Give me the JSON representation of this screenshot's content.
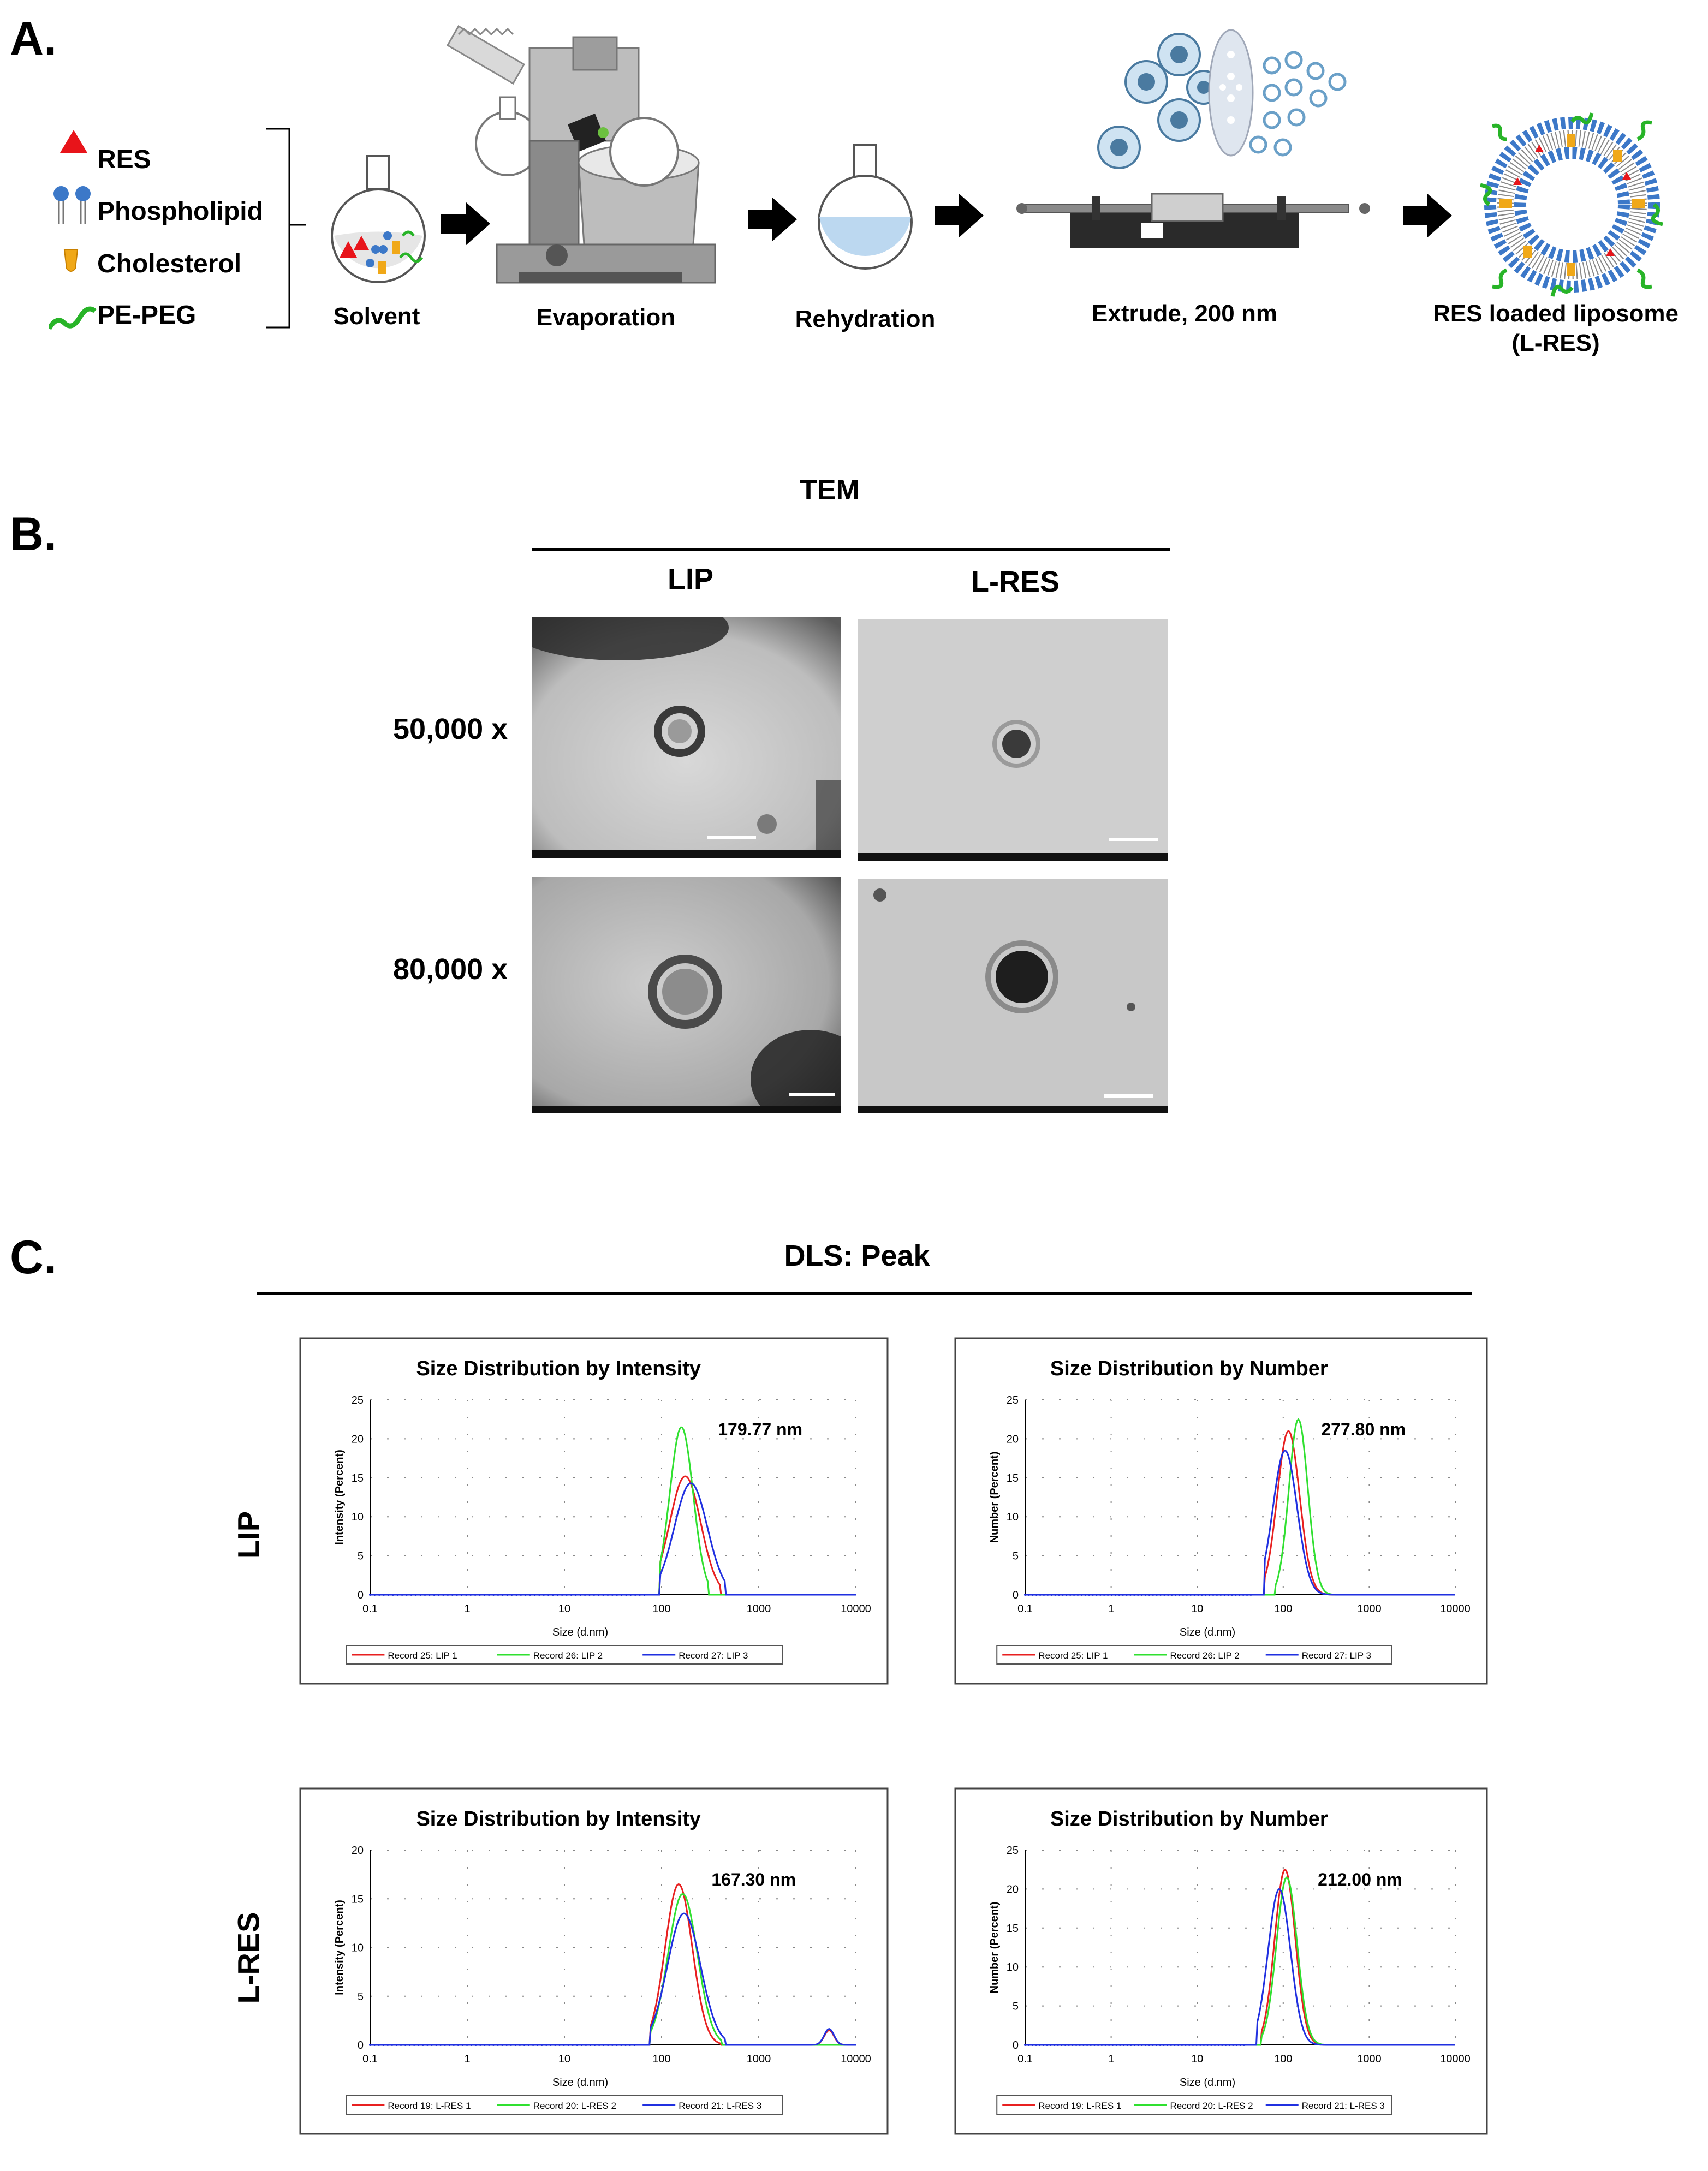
{
  "panel_a": {
    "letter": "A.",
    "legend": [
      {
        "label": "RES",
        "icon": "red-triangle-icon",
        "color": "#e8141a"
      },
      {
        "label": "Phospholipid",
        "icon": "phospholipid-icon",
        "color": "#3c78c8"
      },
      {
        "label": "Cholesterol",
        "icon": "cholesterol-icon",
        "color": "#f0a818"
      },
      {
        "label": "PE-PEG",
        "icon": "pe-peg-icon",
        "color": "#28b428"
      }
    ],
    "steps": [
      "Solvent",
      "Evaporation",
      "Rehydration",
      "Extrude, 200 nm"
    ],
    "final_label_line1": "RES loaded liposome",
    "final_label_line2": "(L-RES)"
  },
  "panel_b": {
    "letter": "B.",
    "title": "TEM",
    "columns": [
      "LIP",
      "L-RES"
    ],
    "rows": [
      "50,000 x",
      "80,000 x"
    ]
  },
  "panel_c": {
    "letter": "C.",
    "title": "DLS: Peak",
    "row_labels": [
      "LIP",
      "L-RES"
    ]
  },
  "chart_data": [
    {
      "type": "line",
      "title": "Size Distribution by Intensity",
      "xlabel": "Size (d.nm)",
      "ylabel": "Intensity (Percent)",
      "xscale": "log",
      "xlim": [
        0.1,
        10000
      ],
      "ylim": [
        0,
        25
      ],
      "x_ticks": [
        "0.1",
        "1",
        "10",
        "100",
        "1000",
        "10000"
      ],
      "y_ticks": [
        "0",
        "5",
        "10",
        "15",
        "20",
        "25"
      ],
      "annotation": "179.77 nm",
      "series": [
        {
          "name": "Record 25: LIP 1",
          "color": "#e82020",
          "peak_x": 175,
          "peak_y": 15.2,
          "width": 0.16,
          "min_x": 95,
          "max_x": 400
        },
        {
          "name": "Record 26: LIP 2",
          "color": "#30e030",
          "peak_x": 160,
          "peak_y": 21.5,
          "width": 0.12,
          "min_x": 95,
          "max_x": 300
        },
        {
          "name": "Record 27: LIP 3",
          "color": "#2030e0",
          "peak_x": 200,
          "peak_y": 14.3,
          "width": 0.17,
          "min_x": 95,
          "max_x": 450
        }
      ]
    },
    {
      "type": "line",
      "title": "Size Distribution by Number",
      "xlabel": "Size (d.nm)",
      "ylabel": "Number (Percent)",
      "xscale": "log",
      "xlim": [
        0.1,
        10000
      ],
      "ylim": [
        0,
        25
      ],
      "x_ticks": [
        "0.1",
        "1",
        "10",
        "100",
        "1000",
        "10000"
      ],
      "y_ticks": [
        "0",
        "5",
        "10",
        "15",
        "20",
        "25"
      ],
      "annotation": "277.80  nm",
      "series": [
        {
          "name": "Record 25: LIP 1",
          "color": "#e82020",
          "peak_x": 115,
          "peak_y": 21.0,
          "width": 0.13,
          "min_x": 60,
          "max_x": 500
        },
        {
          "name": "Record 26: LIP 2",
          "color": "#30e030",
          "peak_x": 150,
          "peak_y": 22.5,
          "width": 0.11,
          "min_x": 80,
          "max_x": 450
        },
        {
          "name": "Record 27: LIP 3",
          "color": "#2030e0",
          "peak_x": 105,
          "peak_y": 18.5,
          "width": 0.14,
          "min_x": 60,
          "max_x": 500
        }
      ]
    },
    {
      "type": "line",
      "title": "Size Distribution by Intensity",
      "xlabel": "Size (d.nm)",
      "ylabel": "Intensity (Percent)",
      "xscale": "log",
      "xlim": [
        0.1,
        10000
      ],
      "ylim": [
        0,
        20
      ],
      "x_ticks": [
        "0.1",
        "1",
        "10",
        "100",
        "1000",
        "10000"
      ],
      "y_ticks": [
        "0",
        "5",
        "10",
        "15",
        "20"
      ],
      "annotation": "167.30 nm",
      "series": [
        {
          "name": "Record 19: L-RES 1",
          "color": "#e82020",
          "peak_x": 150,
          "peak_y": 16.5,
          "width": 0.14,
          "min_x": 75,
          "max_x": 400
        },
        {
          "name": "Record 20: L-RES 2",
          "color": "#30e030",
          "peak_x": 165,
          "peak_y": 15.5,
          "width": 0.15,
          "min_x": 75,
          "max_x": 420
        },
        {
          "name": "Record 21: L-RES 3",
          "color": "#2030e0",
          "peak_x": 170,
          "peak_y": 13.5,
          "width": 0.17,
          "min_x": 75,
          "max_x": 450
        }
      ],
      "secondary_peak": {
        "x": 5300,
        "y": 1.5
      }
    },
    {
      "type": "line",
      "title": "Size Distribution by Number",
      "xlabel": "Size (d.nm)",
      "ylabel": "Number (Percent)",
      "xscale": "log",
      "xlim": [
        0.1,
        10000
      ],
      "ylim": [
        0,
        25
      ],
      "x_ticks": [
        "0.1",
        "1",
        "10",
        "100",
        "1000",
        "10000"
      ],
      "y_ticks": [
        "0",
        "5",
        "10",
        "15",
        "20",
        "25"
      ],
      "annotation": "212.00 nm",
      "series": [
        {
          "name": "Record 19: L-RES 1",
          "color": "#e82020",
          "peak_x": 105,
          "peak_y": 22.5,
          "width": 0.12,
          "min_x": 55,
          "max_x": 400
        },
        {
          "name": "Record 20: L-RES 2",
          "color": "#30e030",
          "peak_x": 110,
          "peak_y": 21.5,
          "width": 0.12,
          "min_x": 55,
          "max_x": 400
        },
        {
          "name": "Record 21: L-RES 3",
          "color": "#2030e0",
          "peak_x": 90,
          "peak_y": 20.0,
          "width": 0.13,
          "min_x": 50,
          "max_x": 400
        }
      ]
    }
  ]
}
